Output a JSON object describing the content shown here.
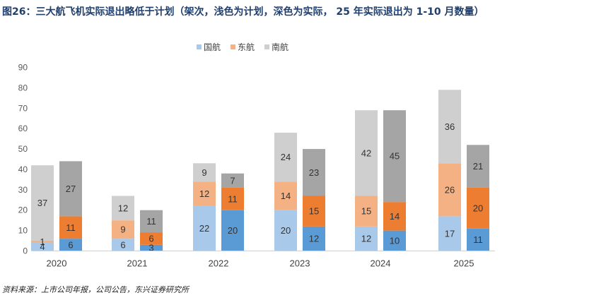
{
  "title": "图26：三大航飞机实际退出略低于计划（架次，浅色为计划，深色为实际，  25 年实际退出为 1-10 月数量）",
  "source": "资料来源：上市公司年报，公司公告，东兴证券研究所",
  "chart_data": {
    "type": "bar",
    "stacked": true,
    "grouped": true,
    "title": "图26：三大航飞机实际退出略低于计划（架次，浅色为计划，深色为实际，  25 年实际退出为 1-10 月数量）",
    "xlabel": "",
    "ylabel": "",
    "ylim": [
      0,
      90
    ],
    "yticks": [
      0,
      10,
      20,
      30,
      40,
      50,
      60,
      70,
      80,
      90
    ],
    "categories": [
      "2020",
      "2021",
      "2022",
      "2023",
      "2024",
      "2025"
    ],
    "groups": [
      "计划",
      "实际"
    ],
    "series": [
      {
        "name": "国航",
        "color_plan": "#a9c9ea",
        "color_actual": "#5b9bd5",
        "plan": [
          4,
          6,
          22,
          20,
          12,
          17
        ],
        "actual": [
          6,
          3,
          20,
          12,
          10,
          11
        ]
      },
      {
        "name": "东航",
        "color_plan": "#f4b183",
        "color_actual": "#ed7d31",
        "plan": [
          1,
          9,
          12,
          14,
          15,
          26
        ],
        "actual": [
          11,
          6,
          11,
          15,
          14,
          20
        ]
      },
      {
        "name": "南航",
        "color_plan": "#cfcfcf",
        "color_actual": "#a5a5a5",
        "plan": [
          37,
          12,
          9,
          24,
          42,
          36
        ],
        "actual": [
          27,
          11,
          7,
          23,
          45,
          21
        ]
      }
    ],
    "legend_position": "top-center",
    "grid": false
  }
}
